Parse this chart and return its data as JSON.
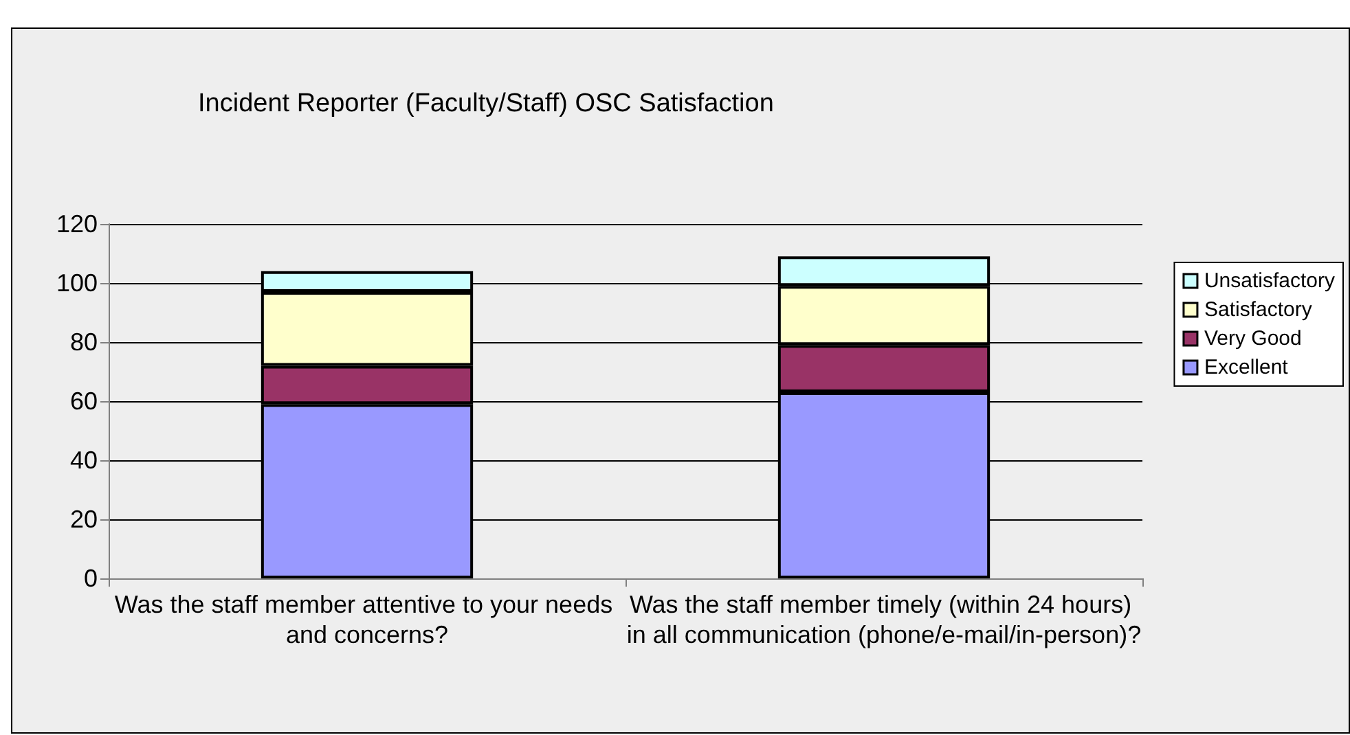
{
  "chart_data": {
    "type": "bar",
    "title": "Incident Reporter (Faculty/Staff) OSC Satisfaction",
    "categories": [
      "Was the staff member attentive to your needs and concerns?",
      "Was the staff member timely (within 24 hours) in all communication (phone/e-mail/in-person)?"
    ],
    "stacked": true,
    "series": [
      {
        "name": "Excellent",
        "color": "#9999ff",
        "values": [
          59,
          63
        ]
      },
      {
        "name": "Very Good",
        "color": "#993366",
        "values": [
          13,
          16
        ]
      },
      {
        "name": "Satisfactory",
        "color": "#ffffcc",
        "values": [
          25,
          20
        ]
      },
      {
        "name": "Unsatisfactory",
        "color": "#ccffff",
        "values": [
          7,
          10
        ]
      }
    ],
    "ylim": [
      0,
      120
    ],
    "yticks": [
      0,
      20,
      40,
      60,
      80,
      100,
      120
    ],
    "grid": "y",
    "legend": "right"
  }
}
